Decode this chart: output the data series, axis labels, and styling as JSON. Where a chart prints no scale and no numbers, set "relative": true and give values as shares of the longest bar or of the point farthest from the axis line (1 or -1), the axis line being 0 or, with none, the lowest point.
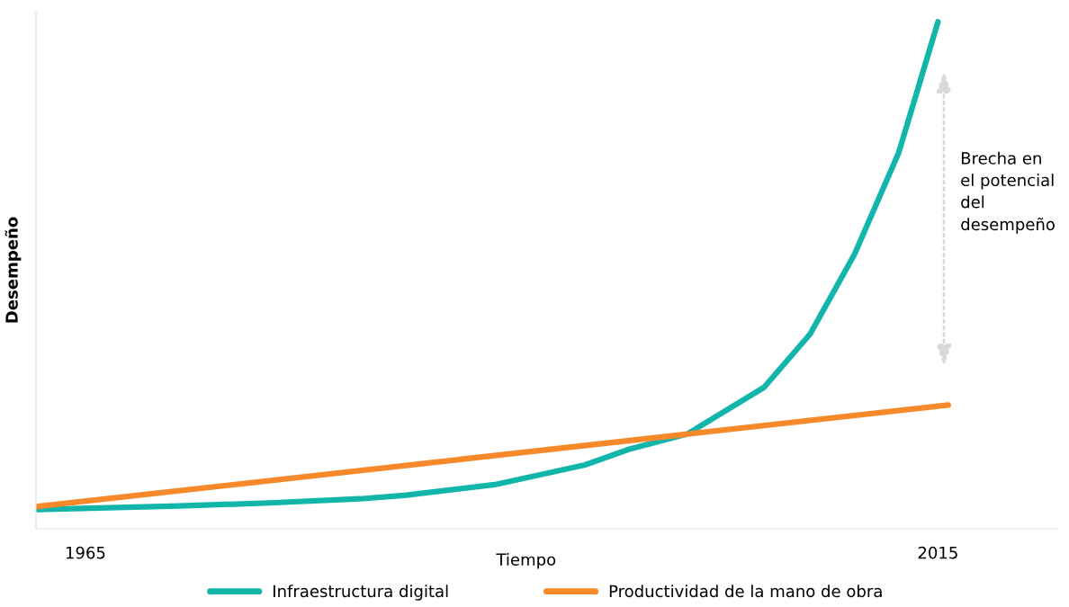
{
  "chart_data": {
    "type": "line",
    "relative": true,
    "xlabel": "Tiempo",
    "ylabel": "Desempeño",
    "xlim": [
      1962.1,
      2022.0
    ],
    "xticks": [
      1965,
      2015
    ],
    "grid": false,
    "legend": "bottom",
    "marker": "none",
    "line_style": "solid",
    "series": [
      {
        "name": "Infraestructura digital",
        "color": "#12b5a9",
        "x": [
          1962.2,
          1970.5,
          1975.8,
          1981.1,
          1983.7,
          1989.0,
          1994.3,
          1996.9,
          2000.3,
          2004.8,
          2007.5,
          2010.1,
          2012.7,
          2015.0
        ],
        "values": [
          0.038,
          0.045,
          0.051,
          0.059,
          0.066,
          0.087,
          0.126,
          0.157,
          0.187,
          0.279,
          0.384,
          0.541,
          0.742,
          1
        ]
      },
      {
        "name": "Productividad de la mano de obra",
        "color": "#f7892a",
        "x": [
          1962.2,
          2015.6
        ],
        "values": [
          0.044,
          0.244
        ]
      }
    ],
    "annotations": [
      "Brecha en\nel potencial\ndel\ndesempeño"
    ]
  }
}
